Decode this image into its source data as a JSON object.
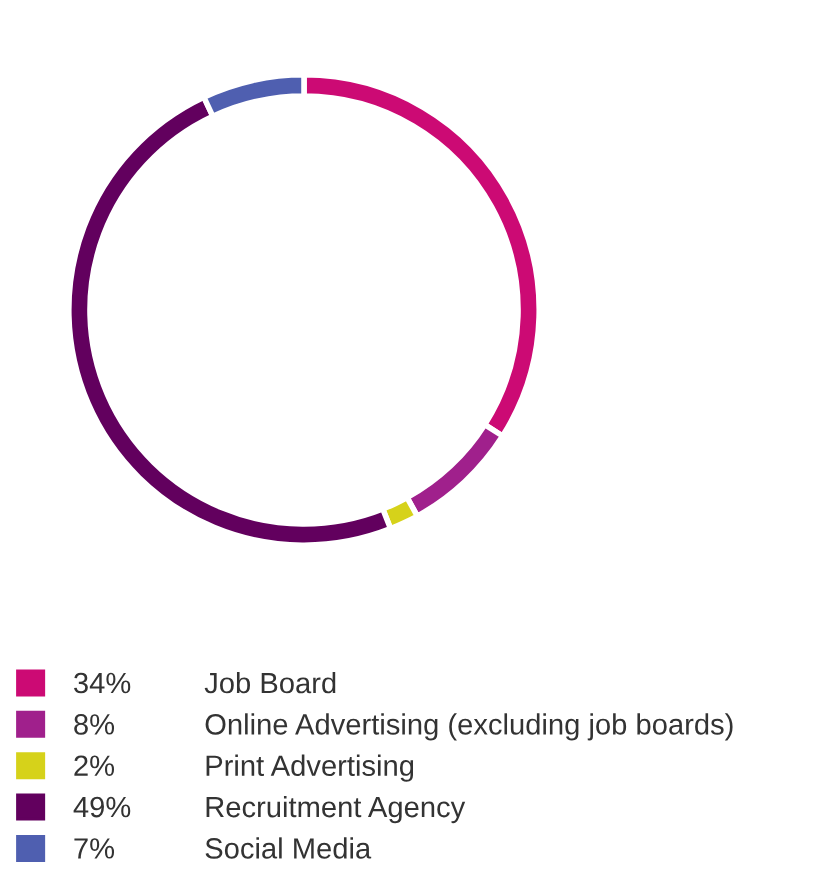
{
  "chart_data": {
    "type": "donut",
    "categories": [
      "Job Board",
      "Online Advertising (excluding job boards)",
      "Print Advertising",
      "Recruitment Agency",
      "Social Media"
    ],
    "values": [
      34,
      8,
      2,
      49,
      7
    ],
    "colors": [
      "#cc0a74",
      "#a0208c",
      "#d6d21a",
      "#62005e",
      "#4f5fb0"
    ],
    "value_labels": [
      "34%",
      "8%",
      "2%",
      "49%",
      "7%"
    ],
    "legend": "bottom"
  }
}
